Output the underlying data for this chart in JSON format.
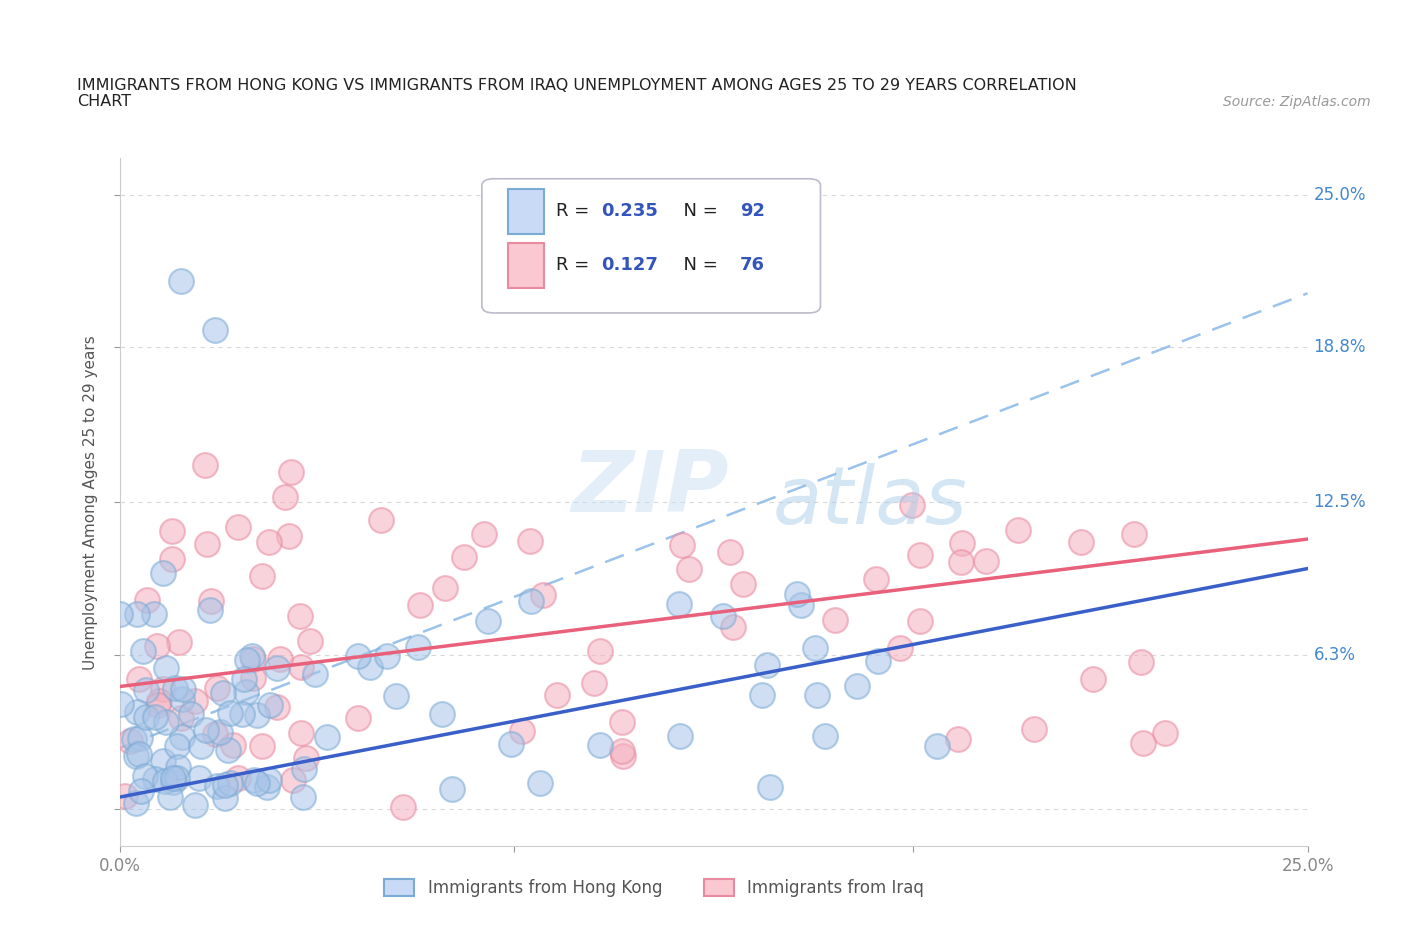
{
  "title_line1": "IMMIGRANTS FROM HONG KONG VS IMMIGRANTS FROM IRAQ UNEMPLOYMENT AMONG AGES 25 TO 29 YEARS CORRELATION",
  "title_line2": "CHART",
  "source_text": "Source: ZipAtlas.com",
  "ylabel": "Unemployment Among Ages 25 to 29 years",
  "xmin": 0.0,
  "xmax": 0.25,
  "ymin": -0.015,
  "ymax": 0.265,
  "yticks": [
    0.0,
    0.063,
    0.125,
    0.188,
    0.25
  ],
  "ytick_labels": [
    "",
    "6.3%",
    "12.5%",
    "18.8%",
    "25.0%"
  ],
  "xtick_labels": [
    "0.0%",
    "25.0%"
  ],
  "hk_color": "#a8c4e8",
  "hk_edge_color": "#7baad4",
  "iraq_color": "#f4b0bf",
  "iraq_edge_color": "#e88aa0",
  "hk_line_color": "#3a5fc8",
  "iraq_line_color": "#e8607a",
  "dash_color": "#90bce8",
  "hk_R": "0.235",
  "hk_N": "92",
  "iraq_R": "0.127",
  "iraq_N": "76",
  "watermark_zip": "ZIP",
  "watermark_atlas": "atlas",
  "legend_hk": "Immigrants from Hong Kong",
  "legend_iraq": "Immigrants from Iraq",
  "hk_line_x0": 0.0,
  "hk_line_y0": 0.005,
  "hk_line_x1": 0.25,
  "hk_line_y1": 0.098,
  "iraq_line_x0": 0.0,
  "iraq_line_y0": 0.05,
  "iraq_line_x1": 0.25,
  "iraq_line_y1": 0.11,
  "dash_line_x0": 0.0,
  "dash_line_y0": 0.025,
  "dash_line_x1": 0.25,
  "dash_line_y1": 0.21,
  "background_color": "#ffffff",
  "grid_color": "#d8d8d8",
  "title_color": "#222222",
  "right_label_color": "#4488cc",
  "legend_R_color": "#222222",
  "legend_val_color": "#3355bb"
}
